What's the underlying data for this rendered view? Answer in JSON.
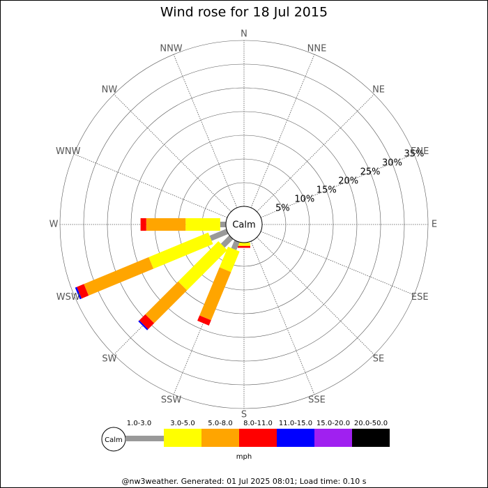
{
  "chart_data": {
    "type": "wind-rose",
    "title": "Wind rose for 18 Jul 2015",
    "directions": [
      "N",
      "NNE",
      "NE",
      "ENE",
      "E",
      "ESE",
      "SE",
      "SSE",
      "S",
      "SSW",
      "SW",
      "WSW",
      "W",
      "WNW",
      "NW",
      "NNW"
    ],
    "calm_label": "Calm",
    "unit": "mph",
    "rlim": [
      0,
      35
    ],
    "rticks": [
      {
        "value": 5,
        "label": "5%"
      },
      {
        "value": 10,
        "label": "10%"
      },
      {
        "value": 15,
        "label": "15%"
      },
      {
        "value": 20,
        "label": "20%"
      },
      {
        "value": 25,
        "label": "25%"
      },
      {
        "value": 30,
        "label": "30%"
      },
      {
        "value": 35,
        "label": "35%"
      }
    ],
    "series": [
      {
        "name": "1.0-3.0",
        "color": "#999999",
        "values": [
          0,
          0,
          0,
          0,
          0,
          0,
          0,
          0,
          0,
          1.8,
          2.5,
          3.8,
          1.2,
          0,
          0,
          0
        ]
      },
      {
        "name": "3.0-5.0",
        "color": "#ffff00",
        "values": [
          0,
          0,
          0,
          0,
          0,
          0,
          0,
          0,
          0.7,
          4.7,
          12.0,
          13.6,
          7.3,
          0,
          0,
          0
        ]
      },
      {
        "name": "5.0-8.0",
        "color": "#ffa500",
        "values": [
          0,
          0,
          0,
          0,
          0,
          0,
          0,
          0,
          0,
          11.0,
          9.8,
          14.8,
          8.3,
          0,
          0,
          0
        ]
      },
      {
        "name": "8.0-11.0",
        "color": "#ff0000",
        "values": [
          0,
          0,
          0,
          0,
          0,
          0,
          0,
          0,
          0.4,
          1.2,
          1.8,
          1.6,
          1.2,
          0,
          0,
          0
        ]
      },
      {
        "name": "11.0-15.0",
        "color": "#0000ff",
        "values": [
          0,
          0,
          0,
          0,
          0,
          0,
          0,
          0,
          0,
          0,
          0.3,
          0.4,
          0,
          0,
          0,
          0
        ]
      },
      {
        "name": "15.0-20.0",
        "color": "#a020f0",
        "values": [
          0,
          0,
          0,
          0,
          0,
          0,
          0,
          0,
          0,
          0,
          0,
          0,
          0,
          0,
          0,
          0
        ]
      },
      {
        "name": "20.0-50.0",
        "color": "#000000",
        "values": [
          0,
          0,
          0,
          0,
          0,
          0,
          0,
          0,
          0,
          0,
          0,
          0,
          0,
          0,
          0,
          0
        ]
      }
    ],
    "footer": "@nw3weather. Generated: 01 Jul 2025 08:01; Load time: 0.10 s"
  }
}
